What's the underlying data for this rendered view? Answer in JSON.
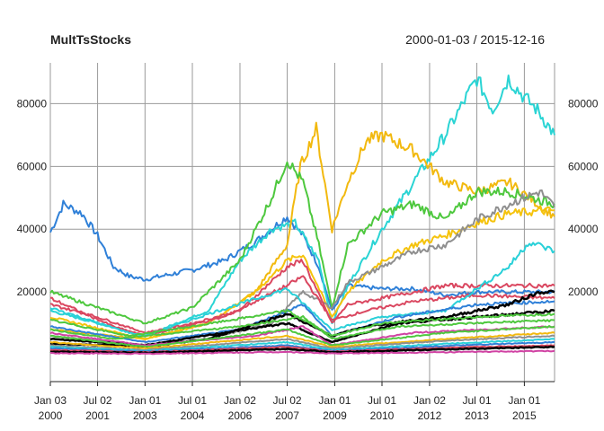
{
  "chart_data": {
    "type": "line",
    "title": "MultTsStocks",
    "date_range": "2000-01-03 / 2015-12-16",
    "x_range": [
      "2000-01-03",
      "2015-12-16"
    ],
    "ylim": [
      -4000,
      93000
    ],
    "y_ticks": [
      20000,
      40000,
      60000,
      80000
    ],
    "y_tick_labels": [
      "20000",
      "40000",
      "60000",
      "80000"
    ],
    "x_tick_labels": [
      {
        "date": "2000-01-03",
        "line1": "Jan 03",
        "line2": "2000"
      },
      {
        "date": "2001-07-02",
        "line1": "Jul 02",
        "line2": "2001"
      },
      {
        "date": "2003-01-01",
        "line1": "Jan 01",
        "line2": "2003"
      },
      {
        "date": "2004-07-01",
        "line1": "Jul 01",
        "line2": "2004"
      },
      {
        "date": "2006-01-02",
        "line1": "Jan 02",
        "line2": "2006"
      },
      {
        "date": "2007-07-02",
        "line1": "Jul 02",
        "line2": "2007"
      },
      {
        "date": "2009-01-01",
        "line1": "Jan 01",
        "line2": "2009"
      },
      {
        "date": "2010-07-01",
        "line1": "Jul 01",
        "line2": "2010"
      },
      {
        "date": "2012-01-02",
        "line1": "Jan 02",
        "line2": "2012"
      },
      {
        "date": "2013-07-01",
        "line1": "Jul 01",
        "line2": "2013"
      },
      {
        "date": "2015-01-01",
        "line1": "Jan 01",
        "line2": "2015"
      }
    ],
    "grid": true,
    "series": [
      {
        "color": "#2f80d8",
        "points": [
          [
            "2000-01-03",
            39000
          ],
          [
            "2000-06-01",
            48000
          ],
          [
            "2001-01-01",
            45000
          ],
          [
            "2001-07-01",
            38000
          ],
          [
            "2002-01-01",
            28000
          ],
          [
            "2002-07-01",
            25000
          ],
          [
            "2003-01-01",
            24000
          ],
          [
            "2003-07-01",
            25000
          ],
          [
            "2004-07-01",
            27000
          ],
          [
            "2005-07-01",
            30000
          ],
          [
            "2006-07-01",
            36000
          ],
          [
            "2007-07-01",
            44000
          ],
          [
            "2008-01-01",
            38000
          ],
          [
            "2008-07-01",
            28000
          ],
          [
            "2008-12-01",
            14000
          ],
          [
            "2009-06-01",
            22000
          ],
          [
            "2010-07-01",
            21000
          ],
          [
            "2011-07-01",
            21000
          ],
          [
            "2012-07-01",
            19000
          ],
          [
            "2013-07-01",
            20000
          ],
          [
            "2014-07-01",
            20000
          ],
          [
            "2015-12-16",
            20000
          ]
        ]
      },
      {
        "color": "#2ad4d4",
        "points": [
          [
            "2000-01-03",
            14000
          ],
          [
            "2001-07-01",
            10000
          ],
          [
            "2003-01-01",
            6000
          ],
          [
            "2004-01-01",
            10000
          ],
          [
            "2005-01-01",
            14000
          ],
          [
            "2006-01-01",
            30000
          ],
          [
            "2007-01-01",
            40000
          ],
          [
            "2007-10-01",
            42000
          ],
          [
            "2008-07-01",
            30000
          ],
          [
            "2008-12-01",
            10000
          ],
          [
            "2009-06-01",
            22000
          ],
          [
            "2010-07-01",
            40000
          ],
          [
            "2011-07-01",
            55000
          ],
          [
            "2012-07-01",
            70000
          ],
          [
            "2013-07-01",
            88000
          ],
          [
            "2014-01-01",
            78000
          ],
          [
            "2014-07-01",
            88000
          ],
          [
            "2015-01-01",
            82000
          ],
          [
            "2015-06-01",
            78000
          ],
          [
            "2015-12-16",
            70000
          ]
        ]
      },
      {
        "color": "#f2b90f",
        "points": [
          [
            "2000-01-03",
            8000
          ],
          [
            "2002-01-01",
            6000
          ],
          [
            "2003-01-01",
            5000
          ],
          [
            "2005-01-01",
            10000
          ],
          [
            "2006-07-01",
            20000
          ],
          [
            "2007-07-01",
            35000
          ],
          [
            "2007-12-01",
            60000
          ],
          [
            "2008-06-01",
            72000
          ],
          [
            "2008-12-01",
            40000
          ],
          [
            "2009-06-01",
            55000
          ],
          [
            "2010-01-01",
            68000
          ],
          [
            "2010-07-01",
            70000
          ],
          [
            "2011-07-01",
            65000
          ],
          [
            "2012-07-01",
            55000
          ],
          [
            "2013-07-01",
            52000
          ],
          [
            "2014-07-01",
            55000
          ],
          [
            "2015-12-16",
            44000
          ]
        ]
      },
      {
        "color": "#4ec83e",
        "points": [
          [
            "2000-01-03",
            20000
          ],
          [
            "2001-07-01",
            15000
          ],
          [
            "2003-01-01",
            10000
          ],
          [
            "2004-07-01",
            15000
          ],
          [
            "2006-01-01",
            30000
          ],
          [
            "2007-01-01",
            50000
          ],
          [
            "2007-07-01",
            62000
          ],
          [
            "2008-01-01",
            55000
          ],
          [
            "2008-07-01",
            35000
          ],
          [
            "2008-12-01",
            15000
          ],
          [
            "2009-06-01",
            35000
          ],
          [
            "2010-07-01",
            45000
          ],
          [
            "2011-07-01",
            48000
          ],
          [
            "2012-07-01",
            43000
          ],
          [
            "2013-07-01",
            52000
          ],
          [
            "2014-07-01",
            52000
          ],
          [
            "2015-12-16",
            48000
          ]
        ]
      },
      {
        "color": "#f5c30c",
        "points": [
          [
            "2000-01-03",
            12000
          ],
          [
            "2003-01-01",
            5000
          ],
          [
            "2005-01-01",
            10000
          ],
          [
            "2006-07-01",
            20000
          ],
          [
            "2007-07-01",
            30000
          ],
          [
            "2008-01-01",
            32000
          ],
          [
            "2008-12-01",
            12000
          ],
          [
            "2009-06-01",
            20000
          ],
          [
            "2010-07-01",
            30000
          ],
          [
            "2011-07-01",
            35000
          ],
          [
            "2012-07-01",
            38000
          ],
          [
            "2013-07-01",
            42000
          ],
          [
            "2014-07-01",
            45000
          ],
          [
            "2015-12-16",
            46000
          ]
        ]
      },
      {
        "color": "#8f8f8f",
        "points": [
          [
            "2000-01-03",
            6000
          ],
          [
            "2003-01-01",
            3000
          ],
          [
            "2005-01-01",
            5000
          ],
          [
            "2007-01-01",
            10000
          ],
          [
            "2008-01-01",
            20000
          ],
          [
            "2008-12-01",
            15000
          ],
          [
            "2009-06-01",
            23000
          ],
          [
            "2010-07-01",
            28000
          ],
          [
            "2011-07-01",
            33000
          ],
          [
            "2012-07-01",
            35000
          ],
          [
            "2013-07-01",
            43000
          ],
          [
            "2014-07-01",
            48000
          ],
          [
            "2015-07-01",
            52000
          ],
          [
            "2015-12-16",
            47000
          ]
        ]
      },
      {
        "color": "#da4760",
        "points": [
          [
            "2000-01-03",
            16000
          ],
          [
            "2001-07-01",
            12000
          ],
          [
            "2003-01-01",
            7000
          ],
          [
            "2004-07-01",
            10000
          ],
          [
            "2006-01-01",
            14000
          ],
          [
            "2007-07-01",
            28000
          ],
          [
            "2008-01-01",
            30000
          ],
          [
            "2008-12-01",
            10000
          ],
          [
            "2009-06-01",
            16000
          ],
          [
            "2010-07-01",
            18000
          ],
          [
            "2011-07-01",
            20000
          ],
          [
            "2012-07-01",
            22000
          ],
          [
            "2013-07-01",
            22000
          ],
          [
            "2014-07-01",
            22000
          ],
          [
            "2015-12-16",
            22000
          ]
        ]
      },
      {
        "color": "#da4760",
        "points": [
          [
            "2000-01-03",
            18000
          ],
          [
            "2002-01-01",
            9000
          ],
          [
            "2003-01-01",
            6000
          ],
          [
            "2005-07-01",
            12000
          ],
          [
            "2007-07-01",
            22000
          ],
          [
            "2008-01-01",
            25000
          ],
          [
            "2008-12-01",
            11000
          ],
          [
            "2010-01-01",
            14000
          ],
          [
            "2011-07-01",
            17000
          ],
          [
            "2013-07-01",
            19000
          ],
          [
            "2015-12-16",
            18000
          ]
        ]
      },
      {
        "color": "#29d0d8",
        "points": [
          [
            "2000-01-03",
            15000
          ],
          [
            "2002-07-01",
            7000
          ],
          [
            "2003-01-01",
            6000
          ],
          [
            "2005-01-01",
            13000
          ],
          [
            "2007-07-01",
            21000
          ],
          [
            "2008-12-01",
            8000
          ],
          [
            "2010-07-01",
            12000
          ],
          [
            "2012-07-01",
            14000
          ],
          [
            "2014-07-01",
            28000
          ],
          [
            "2015-03-01",
            36000
          ],
          [
            "2015-12-16",
            33000
          ]
        ]
      },
      {
        "color": "#2f80d8",
        "points": [
          [
            "2000-01-03",
            9000
          ],
          [
            "2003-01-01",
            4000
          ],
          [
            "2006-01-01",
            8000
          ],
          [
            "2008-01-01",
            16000
          ],
          [
            "2008-12-01",
            6000
          ],
          [
            "2011-01-01",
            12000
          ],
          [
            "2013-07-01",
            16000
          ],
          [
            "2015-12-16",
            17000
          ]
        ]
      },
      {
        "color": "#000000",
        "width": 2.5,
        "points": [
          [
            "2000-01-03",
            3500
          ],
          [
            "2002-01-01",
            3000
          ],
          [
            "2003-01-01",
            2500
          ],
          [
            "2005-01-01",
            5000
          ],
          [
            "2007-07-01",
            13000
          ],
          [
            "2008-12-01",
            6000
          ],
          [
            "2010-01-01",
            9000
          ],
          [
            "2011-07-01",
            11000
          ],
          [
            "2012-07-01",
            12000
          ],
          [
            "2013-07-01",
            14000
          ],
          [
            "2014-07-01",
            16000
          ],
          [
            "2015-07-01",
            20000
          ],
          [
            "2015-12-16",
            20000
          ]
        ]
      },
      {
        "color": "#000000",
        "width": 2.5,
        "points": [
          [
            "2000-01-03",
            5000
          ],
          [
            "2003-01-01",
            3000
          ],
          [
            "2005-07-01",
            7000
          ],
          [
            "2007-07-01",
            10000
          ],
          [
            "2008-12-01",
            4000
          ],
          [
            "2011-01-01",
            10000
          ],
          [
            "2013-07-01",
            12000
          ],
          [
            "2015-12-16",
            14000
          ]
        ]
      },
      {
        "color": "#4ec83e",
        "points": [
          [
            "2000-01-03",
            11000
          ],
          [
            "2002-07-01",
            6000
          ],
          [
            "2004-07-01",
            9000
          ],
          [
            "2007-07-01",
            14000
          ],
          [
            "2008-12-01",
            6000
          ],
          [
            "2010-07-01",
            10000
          ],
          [
            "2013-07-01",
            12000
          ],
          [
            "2015-12-16",
            13000
          ]
        ]
      },
      {
        "color": "#d042a3",
        "points": [
          [
            "2000-01-03",
            7000
          ],
          [
            "2003-01-01",
            3000
          ],
          [
            "2006-07-01",
            6000
          ],
          [
            "2008-01-01",
            9000
          ],
          [
            "2008-12-01",
            3000
          ],
          [
            "2011-07-01",
            7000
          ],
          [
            "2015-12-16",
            9000
          ]
        ]
      },
      {
        "color": "#4ec83e",
        "points": [
          [
            "2000-01-03",
            6000
          ],
          [
            "2003-01-01",
            2500
          ],
          [
            "2007-07-01",
            8000
          ],
          [
            "2008-12-01",
            3000
          ],
          [
            "2012-07-01",
            7000
          ],
          [
            "2015-12-16",
            9000
          ]
        ]
      },
      {
        "color": "#f2b90f",
        "points": [
          [
            "2000-01-03",
            4000
          ],
          [
            "2003-01-01",
            2000
          ],
          [
            "2007-07-01",
            6000
          ],
          [
            "2008-12-01",
            2500
          ],
          [
            "2012-07-01",
            5000
          ],
          [
            "2015-12-16",
            7000
          ]
        ]
      },
      {
        "color": "#8f8f8f",
        "points": [
          [
            "2000-01-03",
            3000
          ],
          [
            "2003-01-01",
            1500
          ],
          [
            "2007-07-01",
            5000
          ],
          [
            "2008-12-01",
            2000
          ],
          [
            "2012-07-01",
            4500
          ],
          [
            "2015-12-16",
            6000
          ]
        ]
      },
      {
        "color": "#29d0d8",
        "points": [
          [
            "2000-01-03",
            2500
          ],
          [
            "2003-01-01",
            1200
          ],
          [
            "2007-07-01",
            4000
          ],
          [
            "2008-12-01",
            1500
          ],
          [
            "2012-07-01",
            3500
          ],
          [
            "2015-12-16",
            5000
          ]
        ]
      },
      {
        "color": "#2f80d8",
        "points": [
          [
            "2000-01-03",
            2000
          ],
          [
            "2003-01-01",
            1000
          ],
          [
            "2007-07-01",
            3000
          ],
          [
            "2008-12-01",
            1200
          ],
          [
            "2012-07-01",
            2800
          ],
          [
            "2015-12-16",
            4000
          ]
        ]
      },
      {
        "color": "#da4760",
        "points": [
          [
            "2000-01-03",
            1500
          ],
          [
            "2003-01-01",
            800
          ],
          [
            "2007-07-01",
            2500
          ],
          [
            "2008-12-01",
            1000
          ],
          [
            "2012-07-01",
            2200
          ],
          [
            "2015-12-16",
            3000
          ]
        ]
      },
      {
        "color": "#000000",
        "width": 2.5,
        "points": [
          [
            "2000-01-03",
            1000
          ],
          [
            "2003-01-01",
            600
          ],
          [
            "2007-07-01",
            1800
          ],
          [
            "2008-12-01",
            800
          ],
          [
            "2012-07-01",
            1700
          ],
          [
            "2015-12-16",
            2500
          ]
        ]
      },
      {
        "color": "#d042a3",
        "points": [
          [
            "2000-01-03",
            500
          ],
          [
            "2003-01-01",
            300
          ],
          [
            "2007-07-01",
            900
          ],
          [
            "2008-12-01",
            400
          ],
          [
            "2012-07-01",
            800
          ],
          [
            "2015-12-16",
            1200
          ]
        ]
      },
      {
        "color": "#4ec83e",
        "points": [
          [
            "2000-01-03",
            8000
          ],
          [
            "2002-01-01",
            5000
          ],
          [
            "2006-01-01",
            9000
          ],
          [
            "2008-01-01",
            12000
          ],
          [
            "2008-12-01",
            5000
          ],
          [
            "2011-01-01",
            9000
          ],
          [
            "2015-12-16",
            11000
          ]
        ]
      }
    ]
  }
}
